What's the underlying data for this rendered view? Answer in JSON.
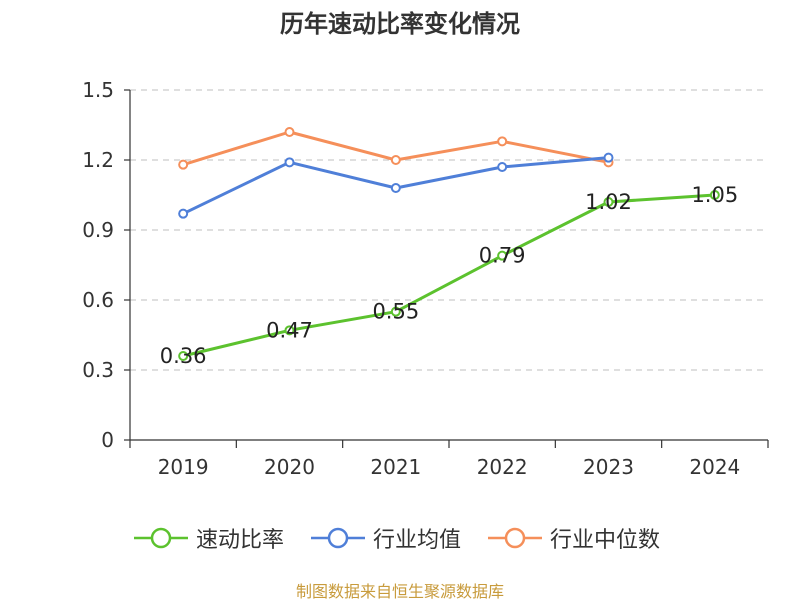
{
  "title": "历年速动比率变化情况",
  "source": "制图数据来自恒生聚源数据库",
  "colors": {
    "quick_ratio": "#5cc22e",
    "industry_avg": "#4f7fd8",
    "industry_median": "#f58f5a",
    "grid": "#cccccc",
    "axis": "#333333",
    "text": "#333333"
  },
  "chart_data": {
    "type": "line",
    "title": "历年速动比率变化情况",
    "categories": [
      "2019",
      "2020",
      "2021",
      "2022",
      "2023",
      "2024"
    ],
    "ylim": [
      0,
      1.5
    ],
    "yticks": [
      0,
      0.3,
      0.6,
      0.9,
      1.2,
      1.5
    ],
    "ytick_labels": [
      "0",
      "0.3",
      "0.6",
      "0.9",
      "1.2",
      "1.5"
    ],
    "grid": true,
    "legend_position": "bottom",
    "series": [
      {
        "key": "quick_ratio",
        "name": "速动比率",
        "values": [
          0.36,
          0.47,
          0.55,
          0.79,
          1.02,
          1.05
        ],
        "labels": [
          "0.36",
          "0.47",
          "0.55",
          "0.79",
          "1.02",
          "1.05"
        ]
      },
      {
        "key": "industry_avg",
        "name": "行业均值",
        "values": [
          0.97,
          1.19,
          1.08,
          1.17,
          1.21,
          null
        ]
      },
      {
        "key": "industry_median",
        "name": "行业中位数",
        "values": [
          1.18,
          1.32,
          1.2,
          1.28,
          1.19,
          null
        ]
      }
    ]
  }
}
